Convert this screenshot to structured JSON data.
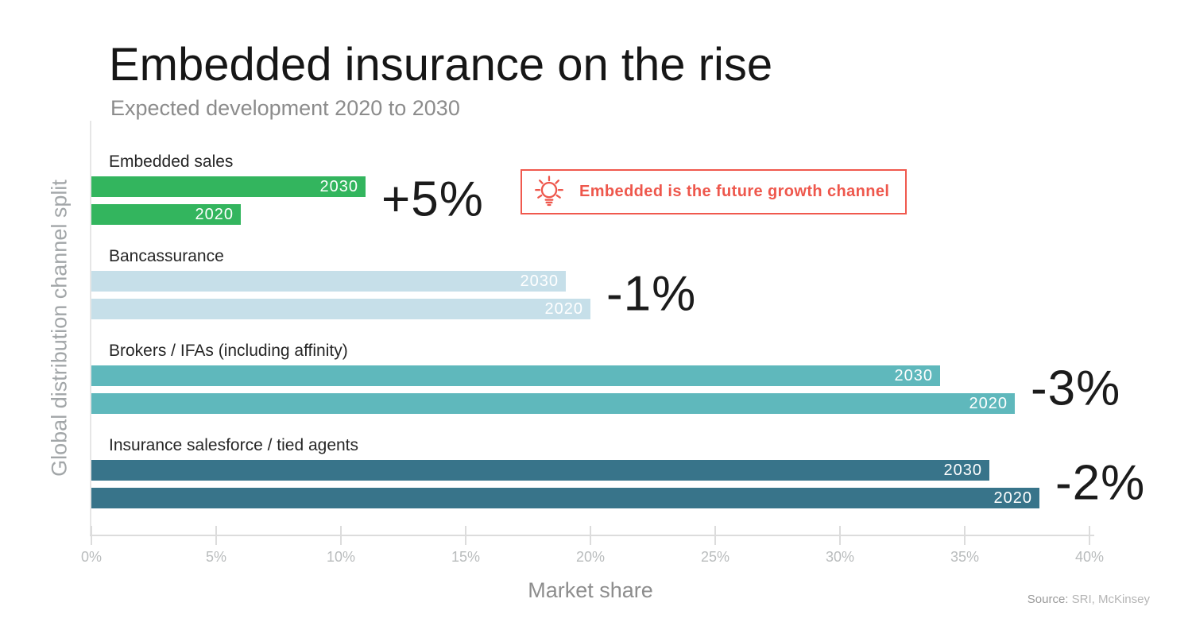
{
  "header": {
    "title": "Embedded insurance on the rise",
    "subtitle": "Expected development 2020 to 2030"
  },
  "callout": {
    "icon": "lightbulb-icon",
    "text": "Embedded is the future growth channel",
    "color": "#ee574c"
  },
  "chart_data": {
    "type": "bar",
    "orientation": "horizontal",
    "title": "Embedded insurance on the rise",
    "subtitle": "Expected development 2020 to 2030",
    "xlabel": "Market share",
    "ylabel": "Global distribution channel split",
    "unit": "%",
    "xlim": [
      0,
      40
    ],
    "x_ticks": [
      "0%",
      "5%",
      "10%",
      "15%",
      "20%",
      "25%",
      "30%",
      "35%",
      "40%"
    ],
    "grid": false,
    "series_labels": [
      "2030",
      "2020"
    ],
    "groups": [
      {
        "category": "Embedded sales",
        "values": {
          "2030": 11,
          "2020": 6
        },
        "delta": "+5%",
        "color": "#33b55e"
      },
      {
        "category": "Bancassurance",
        "values": {
          "2030": 19,
          "2020": 20
        },
        "delta": "-1%",
        "color": "#c6dfe9"
      },
      {
        "category": "Brokers / IFAs (including affinity)",
        "values": {
          "2030": 34,
          "2020": 37
        },
        "delta": "-3%",
        "color": "#5fb8bc"
      },
      {
        "category": "Insurance salesforce / tied agents",
        "values": {
          "2030": 36,
          "2020": 38
        },
        "delta": "-2%",
        "color": "#38748a"
      }
    ]
  },
  "footer": {
    "source_label": "Source:",
    "source_value": " SRI, McKinsey"
  }
}
